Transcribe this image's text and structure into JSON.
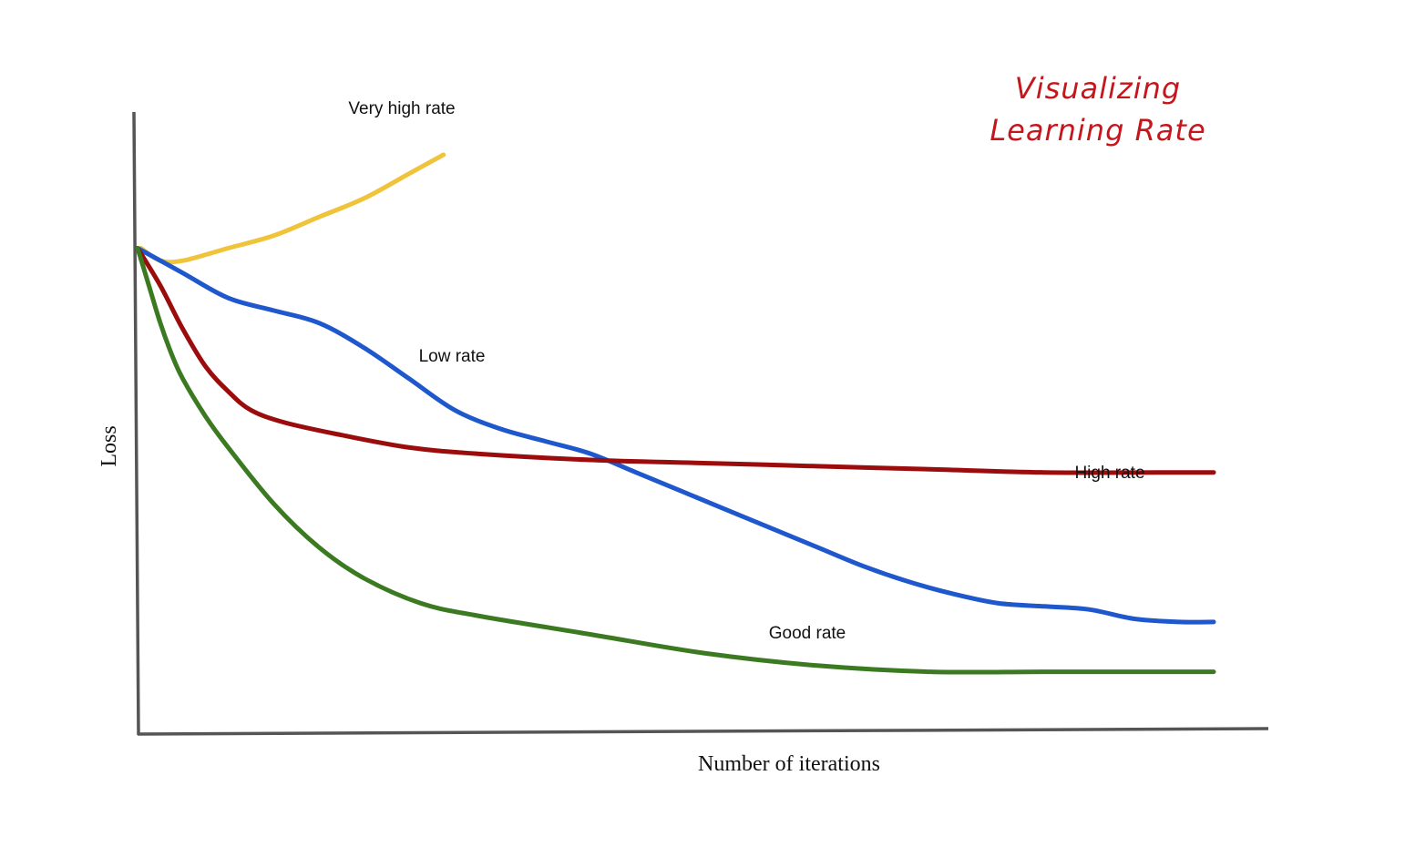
{
  "chart_data": {
    "type": "line",
    "title_lines": [
      "Visualizing",
      "Learning Rate"
    ],
    "xlabel": "Number of iterations",
    "ylabel": "Loss",
    "grid": false,
    "legend": "none",
    "colors": {
      "axis": "#555555",
      "title": "#c4161c",
      "very_high": "#f0c43a",
      "low": "#1f57cc",
      "high": "#9b0d0d",
      "good": "#3c7a22"
    },
    "series": [
      {
        "key": "very_high",
        "label": "Very high rate",
        "points": [
          [
            0.3,
            0.78
          ],
          [
            2,
            0.76
          ],
          [
            4,
            0.76
          ],
          [
            8,
            0.78
          ],
          [
            12,
            0.8
          ],
          [
            16,
            0.83
          ],
          [
            20,
            0.86
          ],
          [
            24,
            0.9
          ],
          [
            27,
            0.93
          ]
        ]
      },
      {
        "key": "low",
        "label": "Low rate",
        "points": [
          [
            0,
            0.78
          ],
          [
            4,
            0.74
          ],
          [
            8,
            0.7
          ],
          [
            12,
            0.68
          ],
          [
            16,
            0.66
          ],
          [
            20,
            0.62
          ],
          [
            24,
            0.57
          ],
          [
            28,
            0.52
          ],
          [
            32,
            0.49
          ],
          [
            36,
            0.47
          ],
          [
            40,
            0.45
          ],
          [
            44,
            0.42
          ],
          [
            48,
            0.39
          ],
          [
            52,
            0.36
          ],
          [
            56,
            0.33
          ],
          [
            60,
            0.3
          ],
          [
            64,
            0.27
          ],
          [
            68,
            0.245
          ],
          [
            72,
            0.225
          ],
          [
            76,
            0.21
          ],
          [
            80,
            0.205
          ],
          [
            84,
            0.2
          ],
          [
            88,
            0.185
          ],
          [
            92,
            0.18
          ],
          [
            95,
            0.18
          ]
        ]
      },
      {
        "key": "high",
        "label": "High rate",
        "points": [
          [
            0,
            0.78
          ],
          [
            2,
            0.72
          ],
          [
            4,
            0.65
          ],
          [
            6,
            0.59
          ],
          [
            8,
            0.55
          ],
          [
            10,
            0.52
          ],
          [
            13,
            0.5
          ],
          [
            18,
            0.48
          ],
          [
            24,
            0.46
          ],
          [
            30,
            0.45
          ],
          [
            40,
            0.44
          ],
          [
            50,
            0.435
          ],
          [
            60,
            0.43
          ],
          [
            70,
            0.425
          ],
          [
            80,
            0.42
          ],
          [
            90,
            0.42
          ],
          [
            95,
            0.42
          ]
        ]
      },
      {
        "key": "good",
        "label": "Good rate",
        "points": [
          [
            0,
            0.78
          ],
          [
            1,
            0.72
          ],
          [
            2,
            0.66
          ],
          [
            3,
            0.61
          ],
          [
            4,
            0.57
          ],
          [
            6,
            0.51
          ],
          [
            8,
            0.46
          ],
          [
            12,
            0.37
          ],
          [
            16,
            0.3
          ],
          [
            20,
            0.25
          ],
          [
            25,
            0.21
          ],
          [
            30,
            0.19
          ],
          [
            40,
            0.16
          ],
          [
            50,
            0.13
          ],
          [
            60,
            0.11
          ],
          [
            70,
            0.1
          ],
          [
            80,
            0.1
          ],
          [
            90,
            0.1
          ],
          [
            95,
            0.1
          ]
        ]
      }
    ]
  }
}
